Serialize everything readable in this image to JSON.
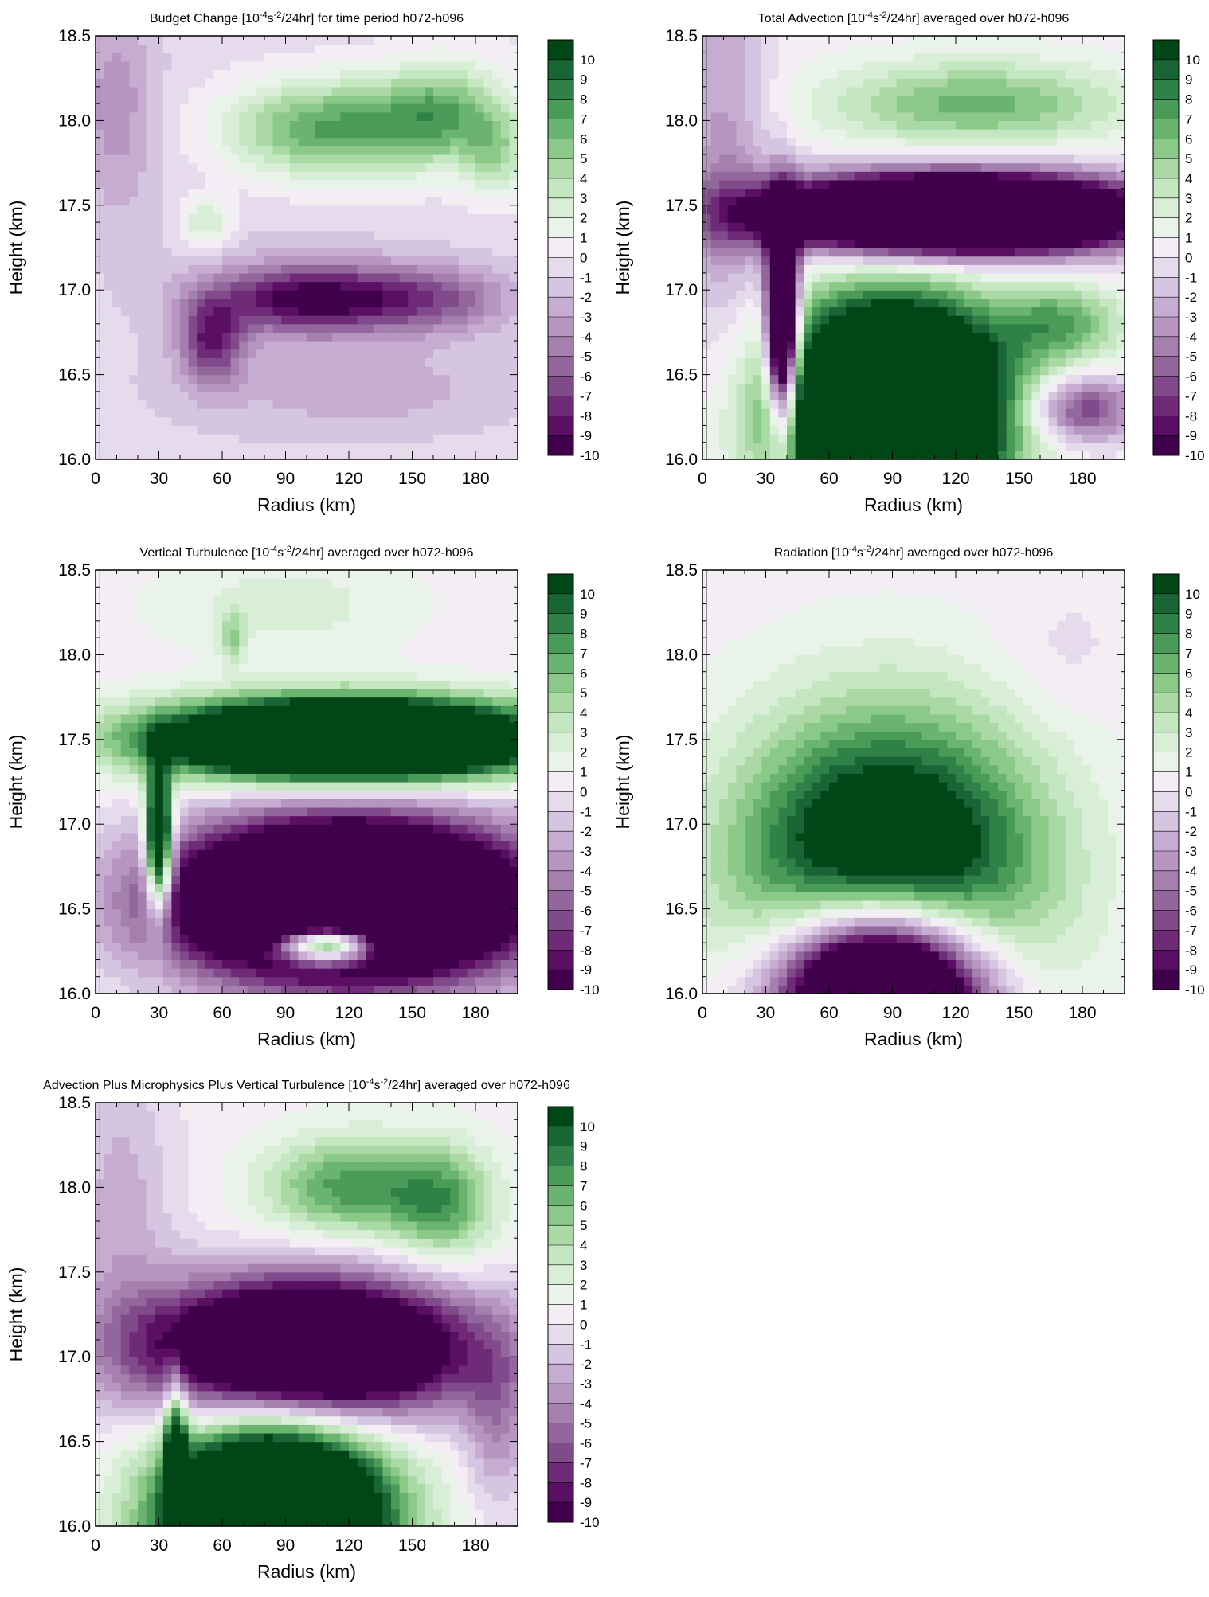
{
  "colors": {
    "scale": [
      "#40004b",
      "#5a0e64",
      "#6f2a78",
      "#814a8b",
      "#93679d",
      "#a57fae",
      "#b696c0",
      "#c6acd1",
      "#d6c5e0",
      "#e6dbec",
      "#f2eef4",
      "#eaf3ea",
      "#d9eed7",
      "#c4e6c0",
      "#aad9a5",
      "#8bc988",
      "#6ab46f",
      "#4a9b58",
      "#2f8147",
      "#1a6535",
      "#004616"
    ]
  },
  "colorbar": {
    "labels": [
      "10",
      "9",
      "8",
      "7",
      "6",
      "5",
      "4",
      "3",
      "2",
      "1",
      "0",
      "-1",
      "-2",
      "-3",
      "-4",
      "-5",
      "-6",
      "-7",
      "-8",
      "-9",
      "-10"
    ]
  },
  "chart_data": [
    {
      "type": "heatmap",
      "title_main": "Budget Change [10",
      "title_exp1": "-4",
      "title_mid": "s",
      "title_exp2": "-2",
      "title_tail": "/24hr] for time period h072-h096",
      "xlabel": "Radius (km)",
      "ylabel": "Height (km)",
      "xlim": [
        0,
        200
      ],
      "ylim": [
        16.0,
        18.5
      ],
      "xticks": [
        "0",
        "30",
        "60",
        "90",
        "120",
        "150",
        "180"
      ],
      "yticks": [
        "16.0",
        "16.5",
        "17.0",
        "17.5",
        "18.0",
        "18.5"
      ],
      "features": [
        {
          "r": 65,
          "z": 17.5,
          "rr": 200,
          "rz": 2.0,
          "amp": -1.5
        },
        {
          "r": 10,
          "z": 18.1,
          "rr": 18,
          "rz": 0.6,
          "amp": -3
        },
        {
          "r": 130,
          "z": 16.4,
          "rr": 90,
          "rz": 0.3,
          "amp": -2
        },
        {
          "r": 110,
          "z": 17.95,
          "rr": 50,
          "rz": 0.3,
          "amp": 8
        },
        {
          "r": 165,
          "z": 18.05,
          "rr": 30,
          "rz": 0.3,
          "amp": 6
        },
        {
          "r": 190,
          "z": 17.8,
          "rr": 15,
          "rz": 0.25,
          "amp": 4
        },
        {
          "r": 52,
          "z": 17.4,
          "rr": 12,
          "rz": 0.15,
          "amp": 4
        },
        {
          "r": 100,
          "z": 16.95,
          "rr": 45,
          "rz": 0.2,
          "amp": -9
        },
        {
          "r": 55,
          "z": 16.7,
          "rr": 15,
          "rz": 0.25,
          "amp": -7
        },
        {
          "r": 160,
          "z": 16.95,
          "rr": 40,
          "rz": 0.2,
          "amp": -5
        }
      ]
    },
    {
      "type": "heatmap",
      "title_main": "Total Advection [10",
      "title_exp1": "-4",
      "title_mid": "s",
      "title_exp2": "-2",
      "title_tail": "/24hr] averaged over h072-h096",
      "xlabel": "Radius (km)",
      "ylabel": "Height (km)",
      "xlim": [
        0,
        200
      ],
      "ylim": [
        16.0,
        18.5
      ],
      "xticks": [
        "0",
        "30",
        "60",
        "90",
        "120",
        "150",
        "180"
      ],
      "yticks": [
        "16.0",
        "16.5",
        "17.0",
        "17.5",
        "18.0",
        "18.5"
      ],
      "features": [
        {
          "r": 10,
          "z": 17.8,
          "rr": 22,
          "rz": 1.2,
          "amp": -4
        },
        {
          "r": 120,
          "z": 17.45,
          "rr": 85,
          "rz": 0.22,
          "amp": -30
        },
        {
          "r": 90,
          "z": 16.3,
          "rr": 50,
          "rz": 0.6,
          "amp": 30
        },
        {
          "r": 38,
          "z": 16.8,
          "rr": 7,
          "rz": 0.6,
          "amp": -25
        },
        {
          "r": 130,
          "z": 18.1,
          "rr": 70,
          "rz": 0.25,
          "amp": 6
        },
        {
          "r": 170,
          "z": 16.8,
          "rr": 30,
          "rz": 0.25,
          "amp": 6
        },
        {
          "r": 180,
          "z": 16.3,
          "rr": 25,
          "rz": 0.2,
          "amp": -8
        }
      ]
    },
    {
      "type": "heatmap",
      "title_main": "Vertical Turbulence [10",
      "title_exp1": "-4",
      "title_mid": "s",
      "title_exp2": "-2",
      "title_tail": "/24hr] averaged over h072-h096",
      "xlabel": "Radius (km)",
      "ylabel": "Height (km)",
      "xlim": [
        0,
        200
      ],
      "ylim": [
        16.0,
        18.5
      ],
      "xticks": [
        "0",
        "30",
        "60",
        "90",
        "120",
        "150",
        "180"
      ],
      "yticks": [
        "16.0",
        "16.5",
        "17.0",
        "17.5",
        "18.0",
        "18.5"
      ],
      "features": [
        {
          "r": 120,
          "z": 17.5,
          "rr": 85,
          "rz": 0.22,
          "amp": 30
        },
        {
          "r": 120,
          "z": 16.55,
          "rr": 80,
          "rz": 0.45,
          "amp": -30
        },
        {
          "r": 30,
          "z": 16.9,
          "rr": 6,
          "rz": 0.4,
          "amp": 20
        },
        {
          "r": 110,
          "z": 16.3,
          "rr": 25,
          "rz": 0.12,
          "amp": 25
        },
        {
          "r": 90,
          "z": 18.3,
          "rr": 60,
          "rz": 0.3,
          "amp": 2
        },
        {
          "r": 65,
          "z": 18.1,
          "rr": 6,
          "rz": 0.15,
          "amp": 4
        }
      ]
    },
    {
      "type": "heatmap",
      "title_main": "Radiation [10",
      "title_exp1": "-4",
      "title_mid": "s",
      "title_exp2": "-2",
      "title_tail": "/24hr] averaged over h072-h096",
      "xlabel": "Radius (km)",
      "ylabel": "Height (km)",
      "xlim": [
        0,
        200
      ],
      "ylim": [
        16.0,
        18.5
      ],
      "xticks": [
        "0",
        "30",
        "60",
        "90",
        "120",
        "150",
        "180"
      ],
      "yticks": [
        "16.0",
        "16.5",
        "17.0",
        "17.5",
        "18.0",
        "18.5"
      ],
      "features": [
        {
          "r": 88,
          "z": 16.7,
          "rr": 70,
          "rz": 0.9,
          "amp": 16
        },
        {
          "r": 85,
          "z": 16.0,
          "rr": 48,
          "rz": 0.55,
          "amp": -32
        },
        {
          "r": 170,
          "z": 18.0,
          "rr": 30,
          "rz": 0.4,
          "amp": -1
        }
      ]
    },
    {
      "type": "heatmap",
      "title_main": "Advection Plus Microphysics Plus Vertical Turbulence [10",
      "title_exp1": "-4",
      "title_mid": "s",
      "title_exp2": "-2",
      "title_tail": "/24hr] averaged over h072-h096",
      "xlabel": "Radius (km)",
      "ylabel": "Height (km)",
      "xlim": [
        0,
        200
      ],
      "ylim": [
        16.0,
        18.5
      ],
      "xticks": [
        "0",
        "30",
        "60",
        "90",
        "120",
        "150",
        "180"
      ],
      "yticks": [
        "16.0",
        "16.5",
        "17.0",
        "17.5",
        "18.0",
        "18.5"
      ],
      "features": [
        {
          "r": 12,
          "z": 17.9,
          "rr": 25,
          "rz": 0.9,
          "amp": -3
        },
        {
          "r": 100,
          "z": 17.05,
          "rr": 75,
          "rz": 0.4,
          "amp": -22
        },
        {
          "r": 85,
          "z": 16.05,
          "rr": 50,
          "rz": 0.55,
          "amp": 28
        },
        {
          "r": 38,
          "z": 16.4,
          "rr": 5,
          "rz": 0.45,
          "amp": 12
        },
        {
          "r": 120,
          "z": 18.0,
          "rr": 40,
          "rz": 0.3,
          "amp": 7
        },
        {
          "r": 165,
          "z": 17.9,
          "rr": 25,
          "rz": 0.35,
          "amp": 6
        },
        {
          "r": 190,
          "z": 16.6,
          "rr": 15,
          "rz": 0.5,
          "amp": -4
        }
      ]
    }
  ]
}
